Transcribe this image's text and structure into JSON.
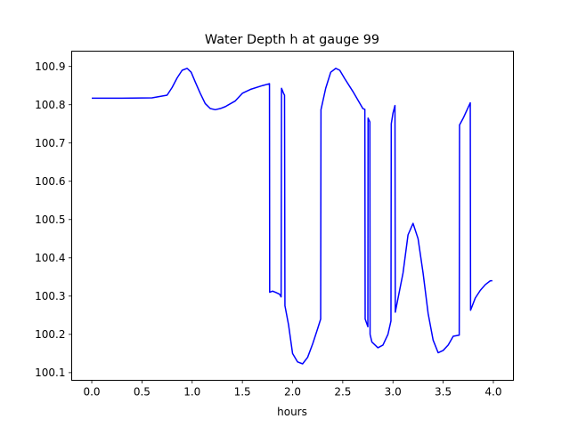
{
  "chart_data": {
    "type": "line",
    "title": "Water Depth h at gauge 99",
    "xlabel": "hours",
    "ylabel": "",
    "xlim": [
      -0.2,
      4.2
    ],
    "ylim": [
      100.08,
      100.94
    ],
    "grid": false,
    "x_ticks": [
      0.0,
      0.5,
      1.0,
      1.5,
      2.0,
      2.5,
      3.0,
      3.5,
      4.0
    ],
    "x_tick_labels": [
      "0.0",
      "0.5",
      "1.0",
      "1.5",
      "2.0",
      "2.5",
      "3.0",
      "3.5",
      "4.0"
    ],
    "y_ticks": [
      100.1,
      100.2,
      100.3,
      100.4,
      100.5,
      100.6,
      100.7,
      100.8,
      100.9
    ],
    "y_tick_labels": [
      "100.1",
      "100.2",
      "100.3",
      "100.4",
      "100.5",
      "100.6",
      "100.7",
      "100.8",
      "100.9"
    ],
    "series": [
      {
        "color": "#0000ff",
        "x": [
          0.0,
          0.3,
          0.6,
          0.75,
          0.8,
          0.85,
          0.9,
          0.95,
          0.99,
          1.03,
          1.08,
          1.13,
          1.18,
          1.23,
          1.28,
          1.33,
          1.43,
          1.5,
          1.58,
          1.7,
          1.77,
          1.772,
          1.8,
          1.83,
          1.87,
          1.886,
          1.89,
          1.91,
          1.92,
          1.924,
          1.96,
          2.0,
          2.05,
          2.1,
          2.15,
          2.2,
          2.25,
          2.28,
          2.283,
          2.33,
          2.38,
          2.43,
          2.47,
          2.52,
          2.6,
          2.7,
          2.72,
          2.723,
          2.75,
          2.752,
          2.77,
          2.772,
          2.79,
          2.85,
          2.9,
          2.95,
          2.98,
          2.983,
          3.0,
          3.02,
          3.023,
          3.1,
          3.15,
          3.2,
          3.25,
          3.3,
          3.35,
          3.4,
          3.45,
          3.5,
          3.55,
          3.6,
          3.66,
          3.663,
          3.7,
          3.77,
          3.773,
          3.82,
          3.87,
          3.92,
          3.97,
          3.99
        ],
        "y": [
          100.817,
          100.817,
          100.818,
          100.825,
          100.845,
          100.87,
          100.89,
          100.895,
          100.885,
          100.86,
          100.83,
          100.803,
          100.79,
          100.787,
          100.79,
          100.795,
          100.81,
          100.83,
          100.84,
          100.85,
          100.855,
          100.31,
          100.313,
          100.31,
          100.305,
          100.298,
          100.843,
          100.83,
          100.825,
          100.275,
          100.225,
          100.15,
          100.128,
          100.123,
          100.14,
          100.175,
          100.215,
          100.24,
          100.787,
          100.843,
          100.885,
          100.895,
          100.89,
          100.868,
          100.835,
          100.79,
          100.788,
          100.24,
          100.22,
          100.765,
          100.755,
          100.2,
          100.18,
          100.165,
          100.172,
          100.2,
          100.235,
          100.75,
          100.778,
          100.798,
          100.258,
          100.36,
          100.46,
          100.49,
          100.45,
          100.36,
          100.255,
          100.185,
          100.152,
          100.158,
          100.172,
          100.195,
          100.198,
          100.747,
          100.765,
          100.805,
          100.263,
          100.295,
          100.315,
          100.33,
          100.34,
          100.34
        ]
      }
    ]
  }
}
